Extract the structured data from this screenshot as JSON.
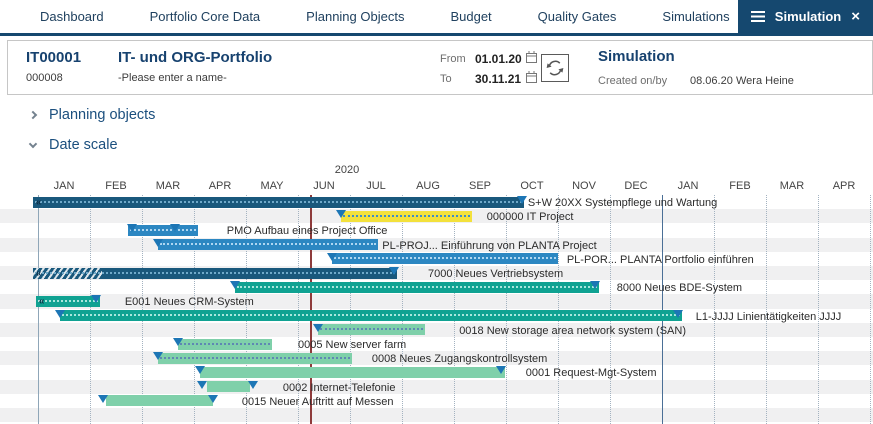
{
  "nav": {
    "items": [
      "Dashboard",
      "Portfolio Core Data",
      "Planning Objects",
      "Budget",
      "Quality Gates",
      "Simulations"
    ],
    "active_tab": "Simulation"
  },
  "header": {
    "portfolio_id": "IT00001",
    "portfolio_sub_id": "000008",
    "portfolio_title": "IT- und ORG-Portfolio",
    "portfolio_name_placeholder": "-Please enter a name-",
    "from_label": "From",
    "from_value": "01.01.20",
    "to_label": "To",
    "to_value": "30.11.21",
    "simulation_title": "Simulation",
    "created_label": "Created on/by",
    "created_date": "08.06.20",
    "created_by": "Wera Heine"
  },
  "sections": {
    "planning_objects": "Planning objects",
    "date_scale": "Date scale"
  },
  "chart_data": {
    "type": "gantt",
    "year_label": "2020",
    "timeline_start": "JAN 2020",
    "months": [
      "JAN",
      "FEB",
      "MAR",
      "APR",
      "MAY",
      "JUN",
      "JUL",
      "AUG",
      "SEP",
      "OCT",
      "NOV",
      "DEC",
      "JAN",
      "FEB",
      "MAR",
      "APR"
    ],
    "today_month": 5.23,
    "year_boundary_after_month": 12,
    "palette": {
      "navy": "#19587c",
      "navy_dot": "#6fa9c9",
      "blue": "#2c87c2",
      "blue_dot": "#aed6f1",
      "teal": "#10a292",
      "teal_dot": "#a8e6dd",
      "mint": "#7fd0aa",
      "mint_dot": "#5f87b3",
      "yellow": "#f3e13c",
      "yellow_dot": "#3f8cc6",
      "marker": "#1d76b5",
      "today_line": "#8e3b3b",
      "year_line": "#4a6f96",
      "grid": "#a3b2c0"
    },
    "rows": [
      {
        "label": "S+W 20XX Systempflege und Wartung",
        "start": -0.1,
        "end": 9.35,
        "color": "navy",
        "dots": true,
        "continues_left": true,
        "markers": [
          9.3
        ],
        "label_at": 9.42
      },
      {
        "label": "000000 IT Project",
        "start": 5.83,
        "end": 8.35,
        "color": "yellow",
        "dots": true,
        "continues_left": false,
        "markers": [
          5.83
        ],
        "label_at": 8.63
      },
      {
        "label": "PMO Aufbau eines Project Office",
        "start": 1.73,
        "end": 3.08,
        "color": "blue",
        "dots": true,
        "continues_left": false,
        "markers": [
          1.81,
          2.63
        ],
        "label_at": 3.63
      },
      {
        "label": "PL-PROJ... Einführung von PLANTA Project",
        "start": 2.31,
        "end": 6.54,
        "color": "blue",
        "dots": true,
        "continues_left": false,
        "markers": [
          2.31
        ],
        "label_at": 6.62
      },
      {
        "label": "PL-POR... PLANTA Portfolio einführen",
        "start": 5.65,
        "end": 10.0,
        "color": "blue",
        "dots": true,
        "continues_left": false,
        "markers": [
          5.65
        ],
        "label_at": 10.17
      },
      {
        "label": "7000 Neues Vertriebsystem",
        "start": -0.1,
        "end": 6.9,
        "color": "navy",
        "dots": true,
        "continues_left": true,
        "hatch_until": 1.23,
        "markers": [
          6.85
        ],
        "label_at": 7.5
      },
      {
        "label": "8000 Neues BDE-System",
        "start": 3.79,
        "end": 10.79,
        "color": "teal",
        "dots": true,
        "continues_left": false,
        "markers": [
          3.79,
          10.72
        ],
        "label_at": 11.13
      },
      {
        "label": "E001 Neues CRM-System",
        "start": -0.04,
        "end": 1.19,
        "color": "teal",
        "dots": true,
        "continues_left": true,
        "markers": [
          1.12
        ],
        "label_at": 1.67
      },
      {
        "label": "L1-JJJJ Linientätigkeiten JJJJ",
        "start": 0.42,
        "end": 12.38,
        "color": "teal",
        "dots": true,
        "continues_left": false,
        "markers": [
          0.42,
          12.3
        ],
        "label_at": 12.65
      },
      {
        "label": "0018 New storage area network system (SAN)",
        "start": 5.38,
        "end": 7.44,
        "color": "mint",
        "dots": true,
        "continues_left": false,
        "markers": [
          5.38
        ],
        "label_at": 8.1
      },
      {
        "label": "0005 New server farm",
        "start": 2.69,
        "end": 4.5,
        "color": "mint",
        "dots": true,
        "continues_left": false,
        "markers": [
          2.69
        ],
        "label_at": 5.0
      },
      {
        "label": "0008 Neues Zugangskontrollsystem",
        "start": 2.31,
        "end": 6.04,
        "color": "mint",
        "dots": true,
        "continues_left": false,
        "markers": [
          2.31
        ],
        "label_at": 6.42
      },
      {
        "label": "0001 Request-Mgt-System",
        "start": 3.12,
        "end": 8.98,
        "color": "mint",
        "dots": false,
        "continues_left": false,
        "markers": [
          3.12,
          8.9
        ],
        "label_at": 9.38
      },
      {
        "label": "0002 Internet-Telefonie",
        "start": 3.25,
        "end": 4.08,
        "color": "mint",
        "dots": false,
        "continues_left": false,
        "markers": [
          3.15,
          4.13
        ],
        "label_at": 4.71
      },
      {
        "label": "0015 Neuer Auftritt auf Messen",
        "start": 1.31,
        "end": 3.37,
        "color": "mint",
        "dots": false,
        "continues_left": false,
        "markers": [
          1.25,
          3.37
        ],
        "label_at": 3.92
      }
    ]
  }
}
